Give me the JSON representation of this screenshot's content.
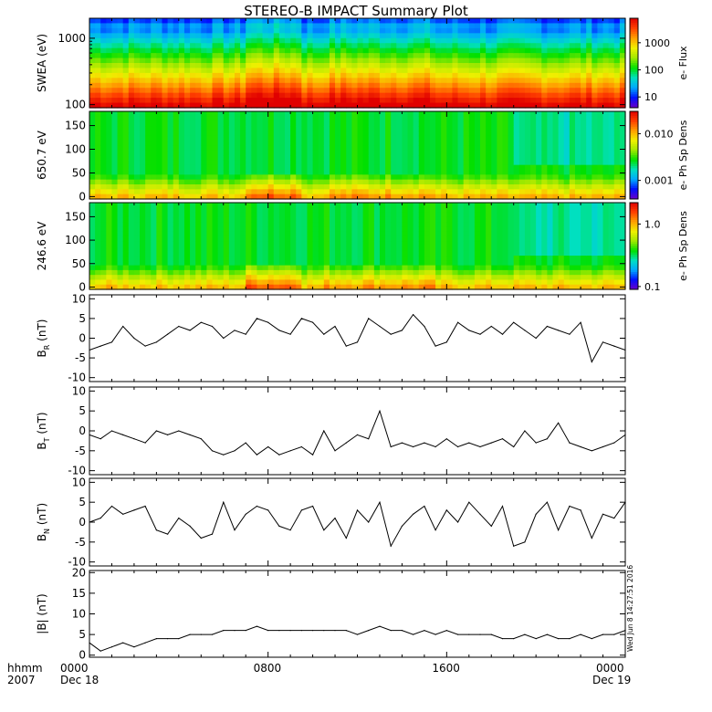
{
  "title": "STEREO-B IMPACT Summary Plot",
  "stamp": "Wed Jun  8 14:27:51 2016",
  "time_axis": {
    "row1_labels": [
      "hhmm",
      "0000",
      "0800",
      "1600",
      "0000"
    ],
    "row2_labels": [
      "2007",
      "Dec 18",
      "",
      "",
      "Dec 19"
    ]
  },
  "colors": {
    "spectrogram_scale": [
      "#6a00c8",
      "#0010ff",
      "#00a8ff",
      "#00e0c0",
      "#00e000",
      "#a0e800",
      "#f0f000",
      "#ffa000",
      "#ff4000",
      "#e00000"
    ]
  },
  "chart_data": [
    {
      "type": "heatmap",
      "ylabel": "SWEA (eV)",
      "yscale": "log",
      "ylim": [
        90,
        2000
      ],
      "yticks": [
        "100",
        "1000"
      ],
      "xlim_hours": [
        0,
        24
      ],
      "colorbar": {
        "label": "e- Flux",
        "scale": "log",
        "range": [
          4,
          8000
        ],
        "ticks": [
          "10",
          "100",
          "1000"
        ]
      }
    },
    {
      "type": "heatmap",
      "ylabel": "650.7 eV",
      "ylim": [
        -5,
        180
      ],
      "yticks": [
        "0",
        "50",
        "100",
        "150"
      ],
      "xlim_hours": [
        0,
        24
      ],
      "colorbar": {
        "label": "e- Ph Sp Dens",
        "scale": "log",
        "range": [
          0.0004,
          0.03
        ],
        "ticks": [
          "0.001",
          "0.010"
        ]
      }
    },
    {
      "type": "heatmap",
      "ylabel": "246.6 eV",
      "ylim": [
        -5,
        180
      ],
      "yticks": [
        "0",
        "50",
        "100",
        "150"
      ],
      "xlim_hours": [
        0,
        24
      ],
      "colorbar": {
        "label": "e- Ph Sp Dens",
        "scale": "log",
        "range": [
          0.09,
          2.2
        ],
        "ticks": [
          "0.1",
          "1.0"
        ]
      }
    },
    {
      "type": "line",
      "ylabel": "B_R (nT)",
      "ylabel_main": "B",
      "ylabel_sub": "R",
      "ylabel_unit": "(nT)",
      "ylim": [
        -11,
        11
      ],
      "yticks": [
        "-10",
        "-5",
        "0",
        "5",
        "10"
      ],
      "x_hours": [
        0,
        0.5,
        1.0,
        1.5,
        2.0,
        2.5,
        3.0,
        3.5,
        4.0,
        4.5,
        5.0,
        5.5,
        6.0,
        6.5,
        7.0,
        7.5,
        8.0,
        8.5,
        9.0,
        9.5,
        10.0,
        10.5,
        11.0,
        11.5,
        12.0,
        12.5,
        13.0,
        13.5,
        14.0,
        14.5,
        15.0,
        15.5,
        16.0,
        16.5,
        17.0,
        17.5,
        18.0,
        18.5,
        19.0,
        19.5,
        20.0,
        20.5,
        21.0,
        21.5,
        22.0,
        22.5,
        23.0,
        23.5,
        24.0
      ],
      "y": [
        -3,
        -2,
        -1,
        3,
        0,
        -2,
        -1,
        1,
        3,
        2,
        4,
        3,
        0,
        2,
        1,
        5,
        4,
        2,
        1,
        5,
        4,
        1,
        3,
        -2,
        -1,
        5,
        3,
        1,
        2,
        6,
        3,
        -2,
        -1,
        4,
        2,
        1,
        3,
        1,
        4,
        2,
        0,
        3,
        2,
        1,
        4,
        -6,
        -1,
        -2,
        -3
      ]
    },
    {
      "type": "line",
      "ylabel": "B_T (nT)",
      "ylabel_main": "B",
      "ylabel_sub": "T",
      "ylabel_unit": "(nT)",
      "ylim": [
        -11,
        11
      ],
      "yticks": [
        "-10",
        "-5",
        "0",
        "5",
        "10"
      ],
      "x_hours": [
        0,
        0.5,
        1.0,
        1.5,
        2.0,
        2.5,
        3.0,
        3.5,
        4.0,
        4.5,
        5.0,
        5.5,
        6.0,
        6.5,
        7.0,
        7.5,
        8.0,
        8.5,
        9.0,
        9.5,
        10.0,
        10.5,
        11.0,
        11.5,
        12.0,
        12.5,
        13.0,
        13.5,
        14.0,
        14.5,
        15.0,
        15.5,
        16.0,
        16.5,
        17.0,
        17.5,
        18.0,
        18.5,
        19.0,
        19.5,
        20.0,
        20.5,
        21.0,
        21.5,
        22.0,
        22.5,
        23.0,
        23.5,
        24.0
      ],
      "y": [
        -1,
        -2,
        0,
        -1,
        -2,
        -3,
        0,
        -1,
        0,
        -1,
        -2,
        -5,
        -6,
        -5,
        -3,
        -6,
        -4,
        -6,
        -5,
        -4,
        -6,
        0,
        -5,
        -3,
        -1,
        -2,
        5,
        -4,
        -3,
        -4,
        -3,
        -4,
        -2,
        -4,
        -3,
        -4,
        -3,
        -2,
        -4,
        0,
        -3,
        -2,
        2,
        -3,
        -4,
        -5,
        -4,
        -3,
        -1
      ]
    },
    {
      "type": "line",
      "ylabel": "B_N (nT)",
      "ylabel_main": "B",
      "ylabel_sub": "N",
      "ylabel_unit": "(nT)",
      "ylim": [
        -11,
        11
      ],
      "yticks": [
        "-10",
        "-5",
        "0",
        "5",
        "10"
      ],
      "x_hours": [
        0,
        0.5,
        1.0,
        1.5,
        2.0,
        2.5,
        3.0,
        3.5,
        4.0,
        4.5,
        5.0,
        5.5,
        6.0,
        6.5,
        7.0,
        7.5,
        8.0,
        8.5,
        9.0,
        9.5,
        10.0,
        10.5,
        11.0,
        11.5,
        12.0,
        12.5,
        13.0,
        13.5,
        14.0,
        14.5,
        15.0,
        15.5,
        16.0,
        16.5,
        17.0,
        17.5,
        18.0,
        18.5,
        19.0,
        19.5,
        20.0,
        20.5,
        21.0,
        21.5,
        22.0,
        22.5,
        23.0,
        23.5,
        24.0
      ],
      "y": [
        0,
        1,
        4,
        2,
        3,
        4,
        -2,
        -3,
        1,
        -1,
        -4,
        -3,
        5,
        -2,
        2,
        4,
        3,
        -1,
        -2,
        3,
        4,
        -2,
        1,
        -4,
        3,
        0,
        5,
        -6,
        -1,
        2,
        4,
        -2,
        3,
        0,
        5,
        2,
        -1,
        4,
        -6,
        -5,
        2,
        5,
        -2,
        4,
        3,
        -4,
        2,
        1,
        5
      ]
    },
    {
      "type": "line",
      "ylabel": "|B| (nT)",
      "ylabel_main": "|B|",
      "ylabel_sub": "",
      "ylabel_unit": "(nT)",
      "ylim": [
        -0.5,
        20.5
      ],
      "yticks": [
        "0",
        "5",
        "10",
        "15",
        "20"
      ],
      "x_hours": [
        0,
        0.5,
        1.0,
        1.5,
        2.0,
        2.5,
        3.0,
        3.5,
        4.0,
        4.5,
        5.0,
        5.5,
        6.0,
        6.5,
        7.0,
        7.5,
        8.0,
        8.5,
        9.0,
        9.5,
        10.0,
        10.5,
        11.0,
        11.5,
        12.0,
        12.5,
        13.0,
        13.5,
        14.0,
        14.5,
        15.0,
        15.5,
        16.0,
        16.5,
        17.0,
        17.5,
        18.0,
        18.5,
        19.0,
        19.5,
        20.0,
        20.5,
        21.0,
        21.5,
        22.0,
        22.5,
        23.0,
        23.5,
        24.0
      ],
      "y": [
        3,
        1,
        2,
        3,
        2,
        3,
        4,
        4,
        4,
        5,
        5,
        5,
        6,
        6,
        6,
        7,
        6,
        6,
        6,
        6,
        6,
        6,
        6,
        6,
        5,
        6,
        7,
        6,
        6,
        5,
        6,
        5,
        6,
        5,
        5,
        5,
        5,
        4,
        4,
        5,
        4,
        5,
        4,
        4,
        5,
        4,
        5,
        5,
        6
      ]
    }
  ]
}
